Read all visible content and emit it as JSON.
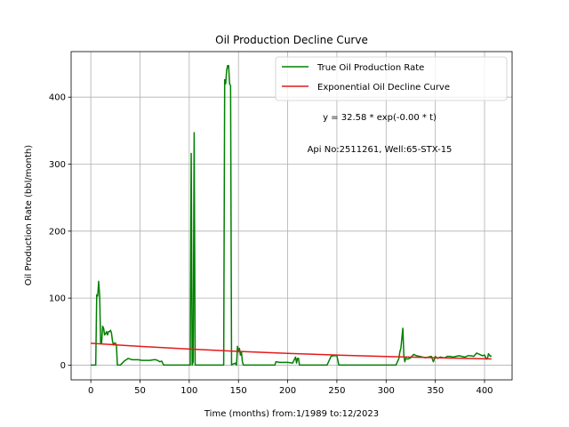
{
  "chart_data": {
    "type": "line",
    "title": "Oil Production Decline Curve",
    "xlabel": "Time (months) from:1/1989 to:12/2023",
    "ylabel": "Oil Production Rate (bbl/month)",
    "xlim": [
      -20,
      428
    ],
    "ylim": [
      -22,
      468
    ],
    "xticks": [
      0,
      50,
      100,
      150,
      200,
      250,
      300,
      350,
      400
    ],
    "yticks": [
      0,
      100,
      200,
      300,
      400
    ],
    "grid": true,
    "legend_position": "upper right",
    "annotations": [
      "y = 32.58 * exp(-0.00 * t)",
      "Api No:2511261, Well:65-STX-15"
    ],
    "series": [
      {
        "name": "True Oil Production Rate",
        "color": "#008000",
        "points": [
          [
            0,
            0
          ],
          [
            5,
            0
          ],
          [
            6,
            105
          ],
          [
            7,
            103
          ],
          [
            8,
            125
          ],
          [
            9,
            103
          ],
          [
            10,
            32
          ],
          [
            11,
            33
          ],
          [
            12,
            58
          ],
          [
            13,
            55
          ],
          [
            14,
            45
          ],
          [
            15,
            47
          ],
          [
            16,
            50
          ],
          [
            17,
            45
          ],
          [
            18,
            50
          ],
          [
            19,
            50
          ],
          [
            20,
            52
          ],
          [
            21,
            48
          ],
          [
            22,
            36
          ],
          [
            23,
            30
          ],
          [
            24,
            33
          ],
          [
            25,
            33
          ],
          [
            26,
            30
          ],
          [
            27,
            0
          ],
          [
            28,
            0
          ],
          [
            30,
            0
          ],
          [
            32,
            3
          ],
          [
            34,
            6
          ],
          [
            36,
            8
          ],
          [
            38,
            10
          ],
          [
            40,
            9
          ],
          [
            42,
            8
          ],
          [
            45,
            8
          ],
          [
            48,
            8
          ],
          [
            52,
            7
          ],
          [
            56,
            7
          ],
          [
            60,
            7
          ],
          [
            64,
            8
          ],
          [
            66,
            8
          ],
          [
            68,
            7
          ],
          [
            70,
            5
          ],
          [
            72,
            6
          ],
          [
            74,
            0
          ],
          [
            80,
            0
          ],
          [
            90,
            0
          ],
          [
            100,
            0
          ],
          [
            101,
            0
          ],
          [
            102,
            316
          ],
          [
            103,
            0
          ],
          [
            104,
            5
          ],
          [
            105,
            347
          ],
          [
            106,
            0
          ],
          [
            110,
            0
          ],
          [
            115,
            0
          ],
          [
            120,
            0
          ],
          [
            125,
            0
          ],
          [
            130,
            0
          ],
          [
            135,
            0
          ],
          [
            136,
            426
          ],
          [
            137,
            420
          ],
          [
            138,
            440
          ],
          [
            139,
            447
          ],
          [
            140,
            447
          ],
          [
            141,
            420
          ],
          [
            142,
            417
          ],
          [
            143,
            0
          ],
          [
            145,
            2
          ],
          [
            147,
            3
          ],
          [
            148,
            0
          ],
          [
            149,
            28
          ],
          [
            150,
            20
          ],
          [
            151,
            25
          ],
          [
            152,
            15
          ],
          [
            153,
            20
          ],
          [
            154,
            5
          ],
          [
            155,
            0
          ],
          [
            160,
            0
          ],
          [
            170,
            0
          ],
          [
            180,
            0
          ],
          [
            187,
            0
          ],
          [
            188,
            5
          ],
          [
            192,
            4
          ],
          [
            196,
            4
          ],
          [
            200,
            4
          ],
          [
            205,
            3
          ],
          [
            208,
            12
          ],
          [
            209,
            3
          ],
          [
            210,
            10
          ],
          [
            211,
            10
          ],
          [
            212,
            0
          ],
          [
            215,
            0
          ],
          [
            220,
            0
          ],
          [
            230,
            0
          ],
          [
            240,
            0
          ],
          [
            244,
            13
          ],
          [
            246,
            14
          ],
          [
            250,
            14
          ],
          [
            252,
            0
          ],
          [
            260,
            0
          ],
          [
            270,
            0
          ],
          [
            280,
            0
          ],
          [
            290,
            0
          ],
          [
            300,
            0
          ],
          [
            305,
            0
          ],
          [
            310,
            0
          ],
          [
            313,
            10
          ],
          [
            314,
            20
          ],
          [
            315,
            25
          ],
          [
            316,
            40
          ],
          [
            317,
            55
          ],
          [
            318,
            15
          ],
          [
            319,
            5
          ],
          [
            320,
            10
          ],
          [
            322,
            9
          ],
          [
            325,
            11
          ],
          [
            328,
            16
          ],
          [
            331,
            14
          ],
          [
            334,
            13
          ],
          [
            337,
            12
          ],
          [
            340,
            11
          ],
          [
            343,
            12
          ],
          [
            346,
            13
          ],
          [
            348,
            5
          ],
          [
            350,
            13
          ],
          [
            352,
            10
          ],
          [
            355,
            12
          ],
          [
            358,
            11
          ],
          [
            360,
            11
          ],
          [
            362,
            13
          ],
          [
            365,
            13
          ],
          [
            368,
            12
          ],
          [
            371,
            13
          ],
          [
            374,
            14
          ],
          [
            377,
            13
          ],
          [
            380,
            12
          ],
          [
            383,
            14
          ],
          [
            386,
            14
          ],
          [
            389,
            13
          ],
          [
            392,
            18
          ],
          [
            395,
            16
          ],
          [
            398,
            14
          ],
          [
            400,
            15
          ],
          [
            402,
            9
          ],
          [
            403,
            10
          ],
          [
            404,
            17
          ],
          [
            406,
            13
          ],
          [
            407,
            14
          ]
        ]
      },
      {
        "name": "Exponential Oil Decline Curve",
        "color": "#e41a1c",
        "points": [
          [
            0,
            32.58
          ],
          [
            50,
            27.9
          ],
          [
            100,
            23.9
          ],
          [
            150,
            20.5
          ],
          [
            200,
            17.5
          ],
          [
            250,
            15.0
          ],
          [
            300,
            12.9
          ],
          [
            350,
            11.0
          ],
          [
            407,
            9.2
          ]
        ]
      }
    ]
  }
}
